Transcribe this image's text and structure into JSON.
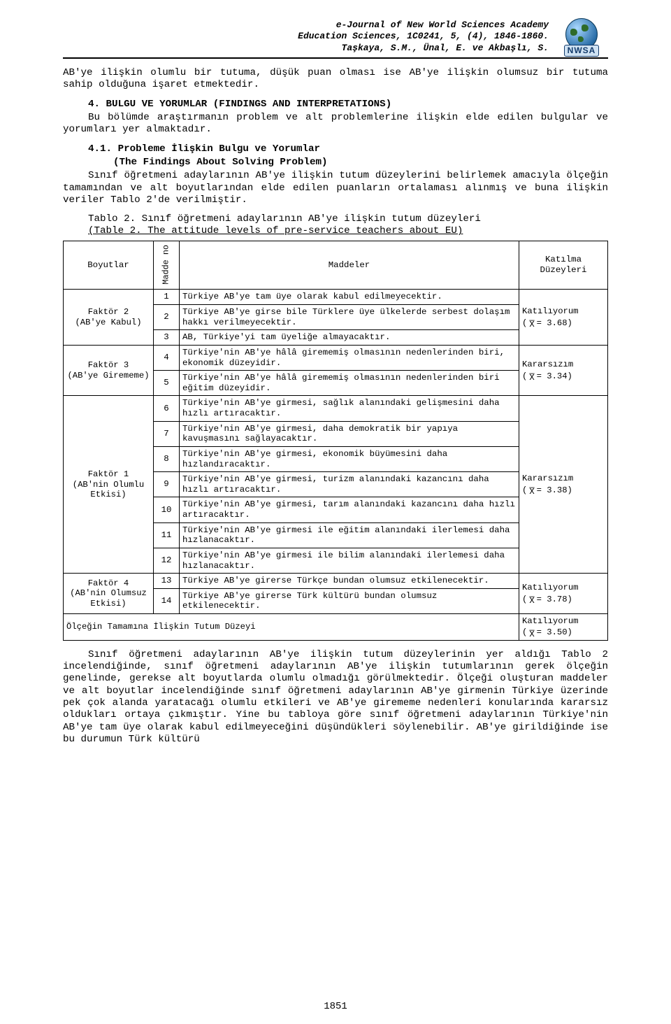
{
  "header": {
    "l1": "e-Journal of New World Sciences Academy",
    "l2": "Education Sciences, 1C0241, 5, (4), 1846-1860.",
    "l3": "Taşkaya, S.M., Ünal, E. ve Akbaşlı, S.",
    "logo_abbr": "NWSA"
  },
  "para1": "AB'ye ilişkin olumlu bir tutuma, düşük puan olması ise AB'ye ilişkin olumsuz bir tutuma sahip olduğuna işaret etmektedir.",
  "sect4_num": "4. BULGU VE YORUMLAR (FINDINGS AND INTERPRETATIONS)",
  "sect4_body": "Bu bölümde araştırmanın problem ve alt problemlerine ilişkin elde edilen bulgular ve yorumları yer almaktadır.",
  "sub41_num": "4.1. Probleme İlişkin Bulgu ve Yorumlar",
  "sub41_sub": "(The Findings About Solving Problem)",
  "sub41_body": "Sınıf öğretmeni adaylarının AB'ye ilişkin tutum düzeylerini belirlemek amacıyla ölçeğin tamamından ve alt boyutlarından elde edilen puanların ortalaması alınmış ve buna ilişkin veriler Tablo 2'de verilmiştir.",
  "tbl_caption1": "Tablo 2. Sınıf öğretmeni adaylarının AB'ye ilişkin tutum düzeyleri",
  "tbl_caption2": "(Table 2. The attitude levels of pre-service teachers about EU)",
  "table": {
    "head": {
      "c1": "Boyutlar",
      "c2": "Madde no",
      "c3": "Maddeler",
      "c4": "Katılma Düzeyleri"
    },
    "groups": [
      {
        "boyut": "Faktör 2\n(AB'ye Kabul)",
        "kat_label": "Katılıyorum",
        "kat_value": "3.68",
        "rows": [
          {
            "n": "1",
            "t": "Türkiye AB'ye tam üye olarak kabul edilmeyecektir."
          },
          {
            "n": "2",
            "t": "Türkiye AB'ye girse bile Türklere üye ülkelerde serbest dolaşım hakkı verilmeyecektir."
          },
          {
            "n": "3",
            "t": "AB, Türkiye'yi tam üyeliğe almayacaktır."
          }
        ]
      },
      {
        "boyut": "Faktör 3\n(AB'ye Girememe)",
        "kat_label": "Kararsızım",
        "kat_value": "3.34",
        "rows": [
          {
            "n": "4",
            "t": "Türkiye'nin AB'ye hâlâ girememiş olmasının nedenlerinden biri, ekonomik düzeyidir."
          },
          {
            "n": "5",
            "t": "Türkiye'nin AB'ye hâlâ girememiş olmasının nedenlerinden biri eğitim düzeyidir."
          }
        ]
      },
      {
        "boyut": "Faktör 1\n(AB'nin Olumlu Etkisi)",
        "kat_label": "Kararsızım",
        "kat_value": "3.38",
        "rows": [
          {
            "n": "6",
            "t": "Türkiye'nin AB'ye girmesi, sağlık alanındaki gelişmesini daha hızlı artıracaktır."
          },
          {
            "n": "7",
            "t": "Türkiye'nin AB'ye girmesi, daha demokratik bir yapıya kavuşmasını sağlayacaktır."
          },
          {
            "n": "8",
            "t": "Türkiye'nin AB'ye girmesi, ekonomik büyümesini daha hızlandıracaktır."
          },
          {
            "n": "9",
            "t": "Türkiye'nin AB'ye girmesi, turizm alanındaki kazancını daha hızlı artıracaktır."
          },
          {
            "n": "10",
            "t": "Türkiye'nin AB'ye girmesi, tarım alanındaki kazancını daha hızlı artıracaktır."
          },
          {
            "n": "11",
            "t": "Türkiye'nin AB'ye girmesi ile eğitim alanındaki ilerlemesi daha hızlanacaktır."
          },
          {
            "n": "12",
            "t": "Türkiye'nin AB'ye girmesi ile bilim alanındaki ilerlemesi daha hızlanacaktır."
          }
        ]
      },
      {
        "boyut": "Faktör 4\n(AB'nin Olumsuz Etkisi)",
        "kat_label": "Katılıyorum",
        "kat_value": "3.78",
        "rows": [
          {
            "n": "13",
            "t": "Türkiye AB'ye girerse Türkçe bundan olumsuz etkilenecektir."
          },
          {
            "n": "14",
            "t": "Türkiye AB'ye girerse Türk kültürü bundan olumsuz etkilenecektir."
          }
        ]
      }
    ],
    "total": {
      "label": "Ölçeğin Tamamına İlişkin Tutum Düzeyi",
      "kat_label": "Katılıyorum",
      "kat_value": "3.50"
    }
  },
  "para_end": "Sınıf öğretmeni adaylarının AB'ye ilişkin tutum düzeylerinin yer aldığı Tablo 2 incelendiğinde, sınıf öğretmeni adaylarının AB'ye ilişkin tutumlarının gerek ölçeğin genelinde, gerekse alt boyutlarda olumlu olmadığı görülmektedir. Ölçeği oluşturan maddeler ve alt boyutlar incelendiğinde sınıf öğretmeni adaylarının AB'ye girmenin Türkiye üzerinde pek çok alanda yaratacağı olumlu etkileri ve AB'ye girememe nedenleri konularında kararsız oldukları ortaya çıkmıştır. Yine bu tabloya göre sınıf öğretmeni adaylarının Türkiye'nin AB'ye tam üye olarak kabul edilmeyeceğini düşündükleri söylenebilir. AB'ye girildiğinde ise bu durumun Türk kültürü",
  "page_number": "1851",
  "colors": {
    "text": "#000000",
    "bg": "#ffffff",
    "border": "#000000"
  }
}
